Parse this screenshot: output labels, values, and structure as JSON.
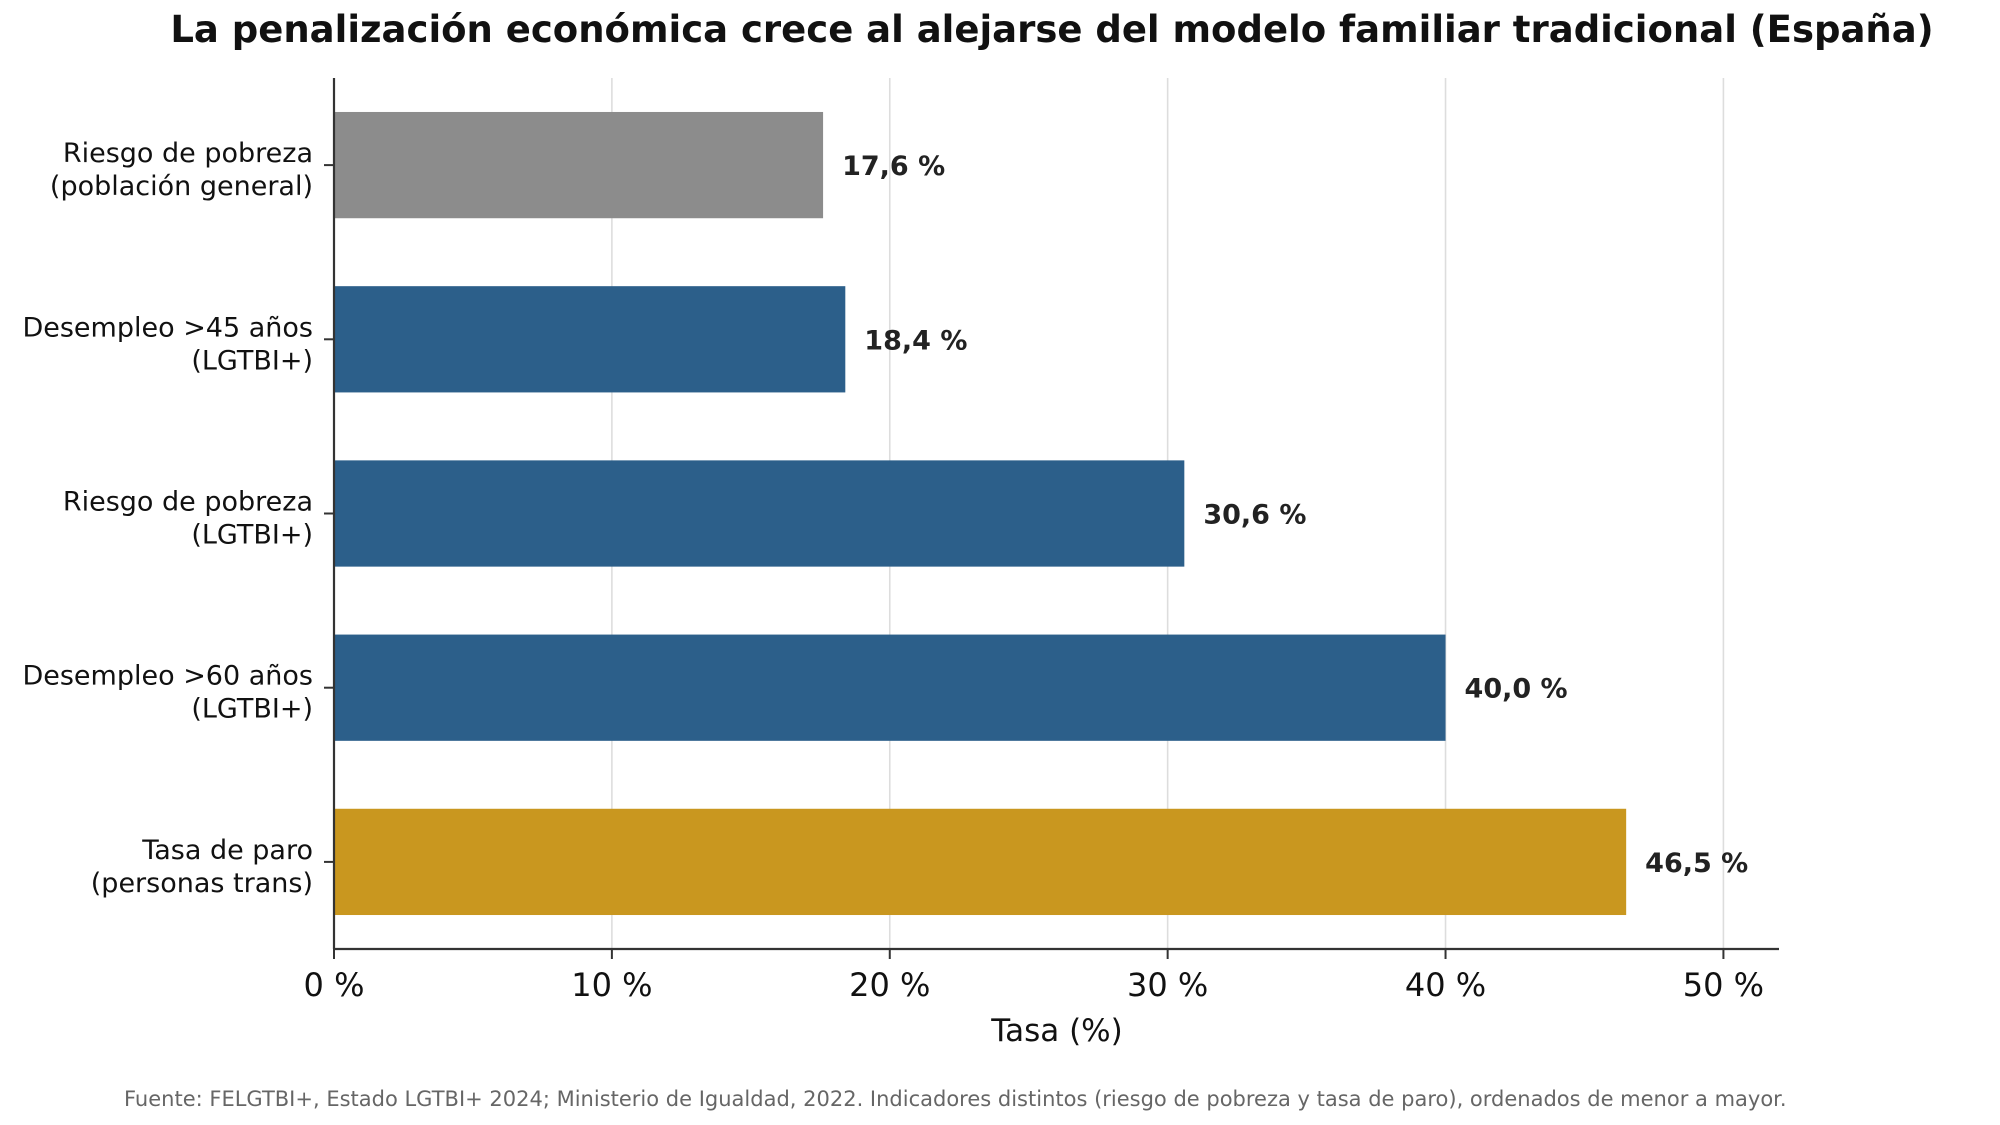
{
  "chart_data": {
    "type": "bar",
    "orientation": "horizontal",
    "title": "La penalización económica crece al alejarse del modelo familiar tradicional (España)",
    "xlabel": "Tasa (%)",
    "ylabel": "",
    "xlim": [
      0,
      52
    ],
    "grid": "vertical",
    "categories": [
      [
        "Riesgo de pobreza",
        "(población general)"
      ],
      [
        "Desempleo >45 años",
        "(LGTBI+)"
      ],
      [
        "Riesgo de pobreza",
        "(LGTBI+)"
      ],
      [
        "Desempleo >60 años",
        "(LGTBI+)"
      ],
      [
        "Tasa de paro",
        "(personas trans)"
      ]
    ],
    "values": [
      17.6,
      18.4,
      30.6,
      40.0,
      46.5
    ],
    "value_labels": [
      "17,6 %",
      "18,4 %",
      "30,6 %",
      "40,0 %",
      "46,5 %"
    ],
    "bar_colors": [
      "#8c8c8c",
      "#2c5f8a",
      "#2c5f8a",
      "#2c5f8a",
      "#c9971f"
    ],
    "x_ticks": [
      0,
      10,
      20,
      30,
      40,
      50
    ],
    "x_tick_labels": [
      "0 %",
      "10 %",
      "20 %",
      "30 %",
      "40 %",
      "50 %"
    ]
  },
  "footer": {
    "source": "Fuente: FELGTBI+, Estado LGTBI+ 2024; Ministerio de Igualdad, 2022. Indicadores distintos (riesgo de pobreza y tasa de paro), ordenados de menor a mayor."
  }
}
